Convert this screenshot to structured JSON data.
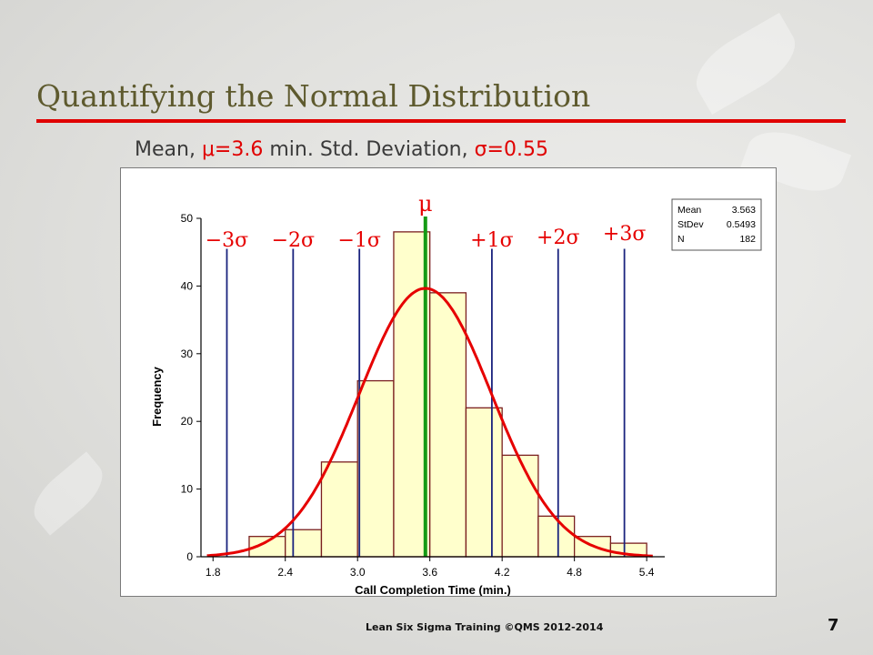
{
  "slide": {
    "title": "Quantifying the Normal Distribution",
    "subtitle": {
      "mean_label": "Mean, ",
      "mean_value": "μ=3.6",
      "mean_unit": " min.  Std. Deviation, ",
      "sd_value": "σ=0.55"
    },
    "footer": "Lean Six Sigma Training ©QMS 2012-2014",
    "page_number": "7"
  },
  "colors": {
    "title": "#5e5a2e",
    "accent_red": "#e00000",
    "bar_fill": "#ffffcc",
    "bar_stroke": "#7a1f1f",
    "sigma_line": "#1a237e",
    "mean_line": "#159a15",
    "curve": "#e60000"
  },
  "chart_data": {
    "type": "bar",
    "title": "",
    "xlabel": "Call Completion Time (min.)",
    "ylabel": "Frequency",
    "xlim": [
      1.7,
      5.55
    ],
    "ylim": [
      0,
      50
    ],
    "x_ticks": [
      "1.8",
      "2.4",
      "3.0",
      "3.6",
      "4.2",
      "4.8",
      "5.4"
    ],
    "x_tick_values": [
      1.8,
      2.4,
      3.0,
      3.6,
      4.2,
      4.8,
      5.4
    ],
    "y_ticks": [
      0,
      10,
      20,
      30,
      40,
      50
    ],
    "bin_width": 0.3,
    "bins": [
      {
        "start": 1.8,
        "count": 0
      },
      {
        "start": 2.1,
        "count": 3
      },
      {
        "start": 2.4,
        "count": 4
      },
      {
        "start": 2.7,
        "count": 14
      },
      {
        "start": 3.0,
        "count": 26
      },
      {
        "start": 3.3,
        "count": 48
      },
      {
        "start": 3.6,
        "count": 39
      },
      {
        "start": 3.9,
        "count": 22
      },
      {
        "start": 4.2,
        "count": 15
      },
      {
        "start": 4.5,
        "count": 6
      },
      {
        "start": 4.8,
        "count": 3
      },
      {
        "start": 5.1,
        "count": 2
      }
    ],
    "curve": {
      "mean": 3.563,
      "sd": 0.5493,
      "n": 182
    },
    "sigma_lines": [
      {
        "label": "−3σ",
        "x": 1.915
      },
      {
        "label": "−2σ",
        "x": 2.465
      },
      {
        "label": "−1σ",
        "x": 3.015
      },
      {
        "label": "+1σ",
        "x": 4.115
      },
      {
        "label": "+2σ",
        "x": 4.665
      },
      {
        "label": "+3σ",
        "x": 5.215
      }
    ],
    "mean_marker": {
      "label": "μ",
      "x": 3.563
    },
    "legend": {
      "placement": "top-right",
      "rows": [
        {
          "name": "Mean",
          "value": "3.563"
        },
        {
          "name": "StDev",
          "value": "0.5493"
        },
        {
          "name": "N",
          "value": "182"
        }
      ]
    },
    "grid": false
  }
}
